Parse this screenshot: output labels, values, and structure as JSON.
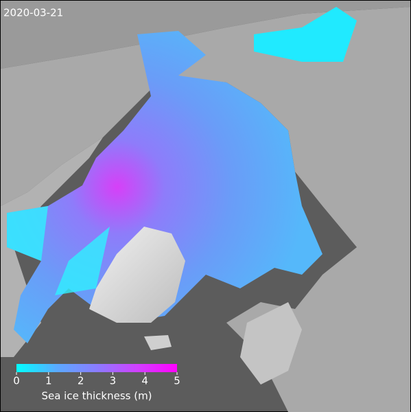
{
  "date": "2020-03-21",
  "colorbar": {
    "label": "Sea ice thickness (m)",
    "lim": [
      0,
      5
    ],
    "ticks": [
      0,
      1,
      2,
      3,
      4,
      5
    ],
    "colors": [
      "#00ffff",
      "#5aaaff",
      "#8a7cff",
      "#d040ff",
      "#ff00ff"
    ]
  }
}
